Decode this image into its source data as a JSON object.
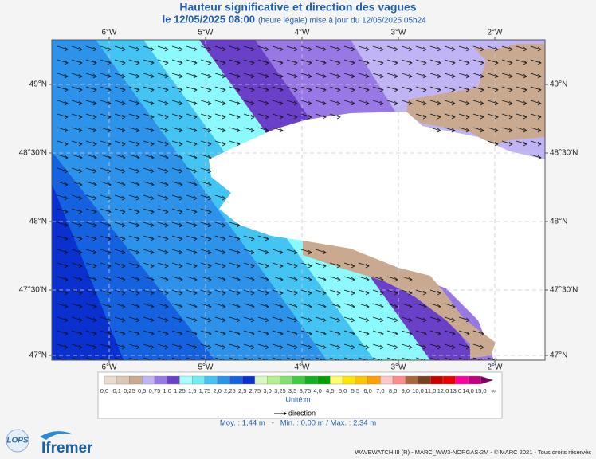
{
  "header": {
    "title": "Hauteur significative et direction des vagues",
    "date": "le 12/05/2025 08:00",
    "update_note": "(heure légale) mise à jour du 12/05/2025 05h24"
  },
  "map": {
    "longitude_labels": [
      "6°W",
      "5°W",
      "4°W",
      "3°W",
      "2°W"
    ],
    "latitude_labels": [
      "49°N",
      "48°30'N",
      "48°N",
      "47°30'N",
      "47°N"
    ]
  },
  "legend": {
    "labels": [
      "0,0",
      "0,1",
      "0,25",
      "0,5",
      "0,75",
      "1,0",
      "1,25",
      "1,5",
      "1,75",
      "2,0",
      "2,25",
      "2,5",
      "2,75",
      "3,0",
      "3,25",
      "3,5",
      "3,75",
      "4,0",
      "4,5",
      "5,0",
      "5,5",
      "6,0",
      "7,0",
      "8,0",
      "9,0",
      "10,0",
      "11,0",
      "12,0",
      "13,0",
      "14,0",
      "15,0",
      "∞"
    ],
    "colors": [
      "#eadbd0",
      "#dcc6b4",
      "#c9a98f",
      "#c0b4f4",
      "#9878e4",
      "#6a40c8",
      "#a8ffff",
      "#70eef4",
      "#44c4f2",
      "#2c92ea",
      "#1462e0",
      "#0a30d0",
      "#d8f8c0",
      "#b4f090",
      "#80e070",
      "#40cc40",
      "#10b020",
      "#00a000",
      "#ffff70",
      "#ffe600",
      "#ffc400",
      "#ffa000",
      "#ffc8c8",
      "#ff8c8c",
      "#a8683c",
      "#7a4020",
      "#c80000",
      "#e80000",
      "#ff00a0",
      "#c00080",
      "#800060"
    ],
    "unit": "Unité:m",
    "direction": "direction",
    "stats": "Moy. : 1,44 m   -   Min. : 0,00 m / Max. : 2,34 m"
  },
  "footer": {
    "credit": "WAVEWATCH III (R) - MARC_WW3-NORGAS-2M - © MARC 2021 - Tous droits réservés",
    "logos": [
      "LOPS",
      "Ifremer"
    ]
  }
}
